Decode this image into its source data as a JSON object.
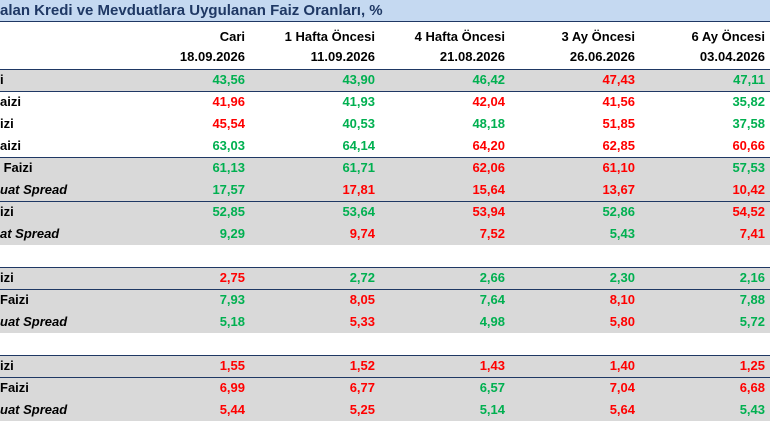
{
  "header": {
    "title": "alan Kredi ve Mevduatlara Uygulanan Faiz Oranları, %"
  },
  "table": {
    "columns": [
      {
        "name": "Cari",
        "date": "18.09.2026"
      },
      {
        "name": "1 Hafta Öncesi",
        "date": "11.09.2026"
      },
      {
        "name": "4 Hafta Öncesi",
        "date": "21.08.2026"
      },
      {
        "name": "3 Ay Öncesi",
        "date": "26.06.2026"
      },
      {
        "name": "6 Ay Öncesi",
        "date": "03.04.2026"
      }
    ],
    "rows": [
      {
        "label": "i",
        "shaded": true,
        "rule_above": true,
        "cells": [
          {
            "text": "43,56",
            "color": "#00b050"
          },
          {
            "text": "43,90",
            "color": "#00b050"
          },
          {
            "text": "46,42",
            "color": "#00b050"
          },
          {
            "text": "47,43",
            "color": "#ff0000"
          },
          {
            "text": "47,11",
            "color": "#00b050"
          }
        ]
      },
      {
        "label": "aizi",
        "rule_above": true,
        "cells": [
          {
            "text": "41,96",
            "color": "#ff0000"
          },
          {
            "text": "41,93",
            "color": "#00b050"
          },
          {
            "text": "42,04",
            "color": "#ff0000"
          },
          {
            "text": "41,56",
            "color": "#ff0000"
          },
          {
            "text": "35,82",
            "color": "#00b050"
          }
        ]
      },
      {
        "label": "izi",
        "cells": [
          {
            "text": "45,54",
            "color": "#ff0000"
          },
          {
            "text": "40,53",
            "color": "#00b050"
          },
          {
            "text": "48,18",
            "color": "#00b050"
          },
          {
            "text": "51,85",
            "color": "#ff0000"
          },
          {
            "text": "37,58",
            "color": "#00b050"
          }
        ]
      },
      {
        "label": "aizi",
        "cells": [
          {
            "text": "63,03",
            "color": "#00b050"
          },
          {
            "text": "64,14",
            "color": "#00b050"
          },
          {
            "text": "64,20",
            "color": "#ff0000"
          },
          {
            "text": "62,85",
            "color": "#ff0000"
          },
          {
            "text": "60,66",
            "color": "#ff0000"
          }
        ]
      },
      {
        "label": " Faizi",
        "shaded": true,
        "rule_above": true,
        "cells": [
          {
            "text": "61,13",
            "color": "#00b050"
          },
          {
            "text": "61,71",
            "color": "#00b050"
          },
          {
            "text": "62,06",
            "color": "#ff0000"
          },
          {
            "text": "61,10",
            "color": "#ff0000"
          },
          {
            "text": "57,53",
            "color": "#00b050"
          }
        ]
      },
      {
        "label": "uat Spread",
        "shaded": true,
        "italic": true,
        "cells": [
          {
            "text": "17,57",
            "color": "#00b050"
          },
          {
            "text": "17,81",
            "color": "#ff0000"
          },
          {
            "text": "15,64",
            "color": "#ff0000"
          },
          {
            "text": "13,67",
            "color": "#ff0000"
          },
          {
            "text": "10,42",
            "color": "#ff0000"
          }
        ]
      },
      {
        "label": "izi",
        "shaded": true,
        "rule_above": true,
        "cells": [
          {
            "text": "52,85",
            "color": "#00b050"
          },
          {
            "text": "53,64",
            "color": "#00b050"
          },
          {
            "text": "53,94",
            "color": "#ff0000"
          },
          {
            "text": "52,86",
            "color": "#00b050"
          },
          {
            "text": "54,52",
            "color": "#ff0000"
          }
        ]
      },
      {
        "label": "at Spread",
        "shaded": true,
        "italic": true,
        "cells": [
          {
            "text": "9,29",
            "color": "#00b050"
          },
          {
            "text": "9,74",
            "color": "#ff0000"
          },
          {
            "text": "7,52",
            "color": "#ff0000"
          },
          {
            "text": "5,43",
            "color": "#00b050"
          },
          {
            "text": "7,41",
            "color": "#ff0000"
          }
        ]
      },
      {
        "label": "izi",
        "shaded": true,
        "rule_above": true,
        "gap_before": true,
        "cells": [
          {
            "text": "2,75",
            "color": "#ff0000"
          },
          {
            "text": "2,72",
            "color": "#00b050"
          },
          {
            "text": "2,66",
            "color": "#00b050"
          },
          {
            "text": "2,30",
            "color": "#00b050"
          },
          {
            "text": "2,16",
            "color": "#00b050"
          }
        ]
      },
      {
        "label": "Faizi",
        "shaded": true,
        "rule_above": true,
        "cells": [
          {
            "text": "7,93",
            "color": "#00b050"
          },
          {
            "text": "8,05",
            "color": "#ff0000"
          },
          {
            "text": "7,64",
            "color": "#00b050"
          },
          {
            "text": "8,10",
            "color": "#ff0000"
          },
          {
            "text": "7,88",
            "color": "#00b050"
          }
        ]
      },
      {
        "label": "uat Spread",
        "shaded": true,
        "italic": true,
        "cells": [
          {
            "text": "5,18",
            "color": "#00b050"
          },
          {
            "text": "5,33",
            "color": "#ff0000"
          },
          {
            "text": "4,98",
            "color": "#00b050"
          },
          {
            "text": "5,80",
            "color": "#ff0000"
          },
          {
            "text": "5,72",
            "color": "#00b050"
          }
        ]
      },
      {
        "label": "izi",
        "shaded": true,
        "rule_above": true,
        "gap_before": true,
        "cells": [
          {
            "text": "1,55",
            "color": "#ff0000"
          },
          {
            "text": "1,52",
            "color": "#ff0000"
          },
          {
            "text": "1,43",
            "color": "#ff0000"
          },
          {
            "text": "1,40",
            "color": "#ff0000"
          },
          {
            "text": "1,25",
            "color": "#ff0000"
          }
        ]
      },
      {
        "label": "Faizi",
        "shaded": true,
        "rule_above": true,
        "cells": [
          {
            "text": "6,99",
            "color": "#ff0000"
          },
          {
            "text": "6,77",
            "color": "#ff0000"
          },
          {
            "text": "6,57",
            "color": "#00b050"
          },
          {
            "text": "7,04",
            "color": "#ff0000"
          },
          {
            "text": "6,68",
            "color": "#ff0000"
          }
        ]
      },
      {
        "label": "uat Spread",
        "shaded": true,
        "italic": true,
        "cells": [
          {
            "text": "5,44",
            "color": "#ff0000"
          },
          {
            "text": "5,25",
            "color": "#ff0000"
          },
          {
            "text": "5,14",
            "color": "#00b050"
          },
          {
            "text": "5,64",
            "color": "#ff0000"
          },
          {
            "text": "5,43",
            "color": "#00b050"
          }
        ]
      }
    ]
  }
}
